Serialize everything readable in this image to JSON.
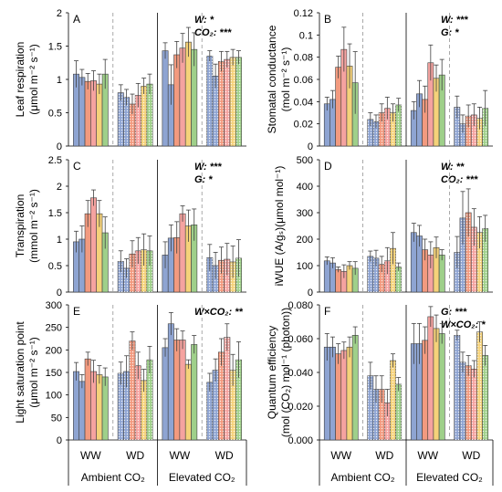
{
  "colors": {
    "bar_colors": [
      "#8ea4d2",
      "#8ea4d2",
      "#f29a7f",
      "#f5a3a0",
      "#f5d27a",
      "#9fd08a"
    ],
    "axis": "#000000",
    "separator": "#a0a0a0"
  },
  "hatched_groups": [
    "WD"
  ],
  "group_labels": [
    "WW",
    "WD",
    "WW",
    "WD"
  ],
  "condition_labels": [
    "Ambient CO₂",
    "Elevated CO₂"
  ],
  "chart_data": [
    {
      "type": "bar",
      "panel": "A",
      "ylabel_line1": "Leaf respiration",
      "ylabel_line2": "(μmol m⁻² s⁻¹)",
      "ylim": [
        0,
        2
      ],
      "yticks": [
        0,
        0.5,
        1,
        1.5,
        2
      ],
      "tick_labels": [
        "0",
        "0.5",
        "1",
        "1.5",
        "2"
      ],
      "stats": [
        "W: *",
        "CO₂: ***"
      ],
      "groups": [
        {
          "values": [
            1.08,
            1.03,
            0.97,
            0.98,
            0.93,
            1.08
          ],
          "errors": [
            0.2,
            0.12,
            0.12,
            0.15,
            0.15,
            0.22
          ]
        },
        {
          "values": [
            0.8,
            0.73,
            0.63,
            0.76,
            0.9,
            0.93
          ],
          "errors": [
            0.12,
            0.12,
            0.15,
            0.18,
            0.12,
            0.15
          ]
        },
        {
          "values": [
            1.43,
            0.92,
            1.37,
            1.47,
            1.56,
            1.45
          ],
          "errors": [
            0.12,
            0.3,
            0.2,
            0.22,
            0.22,
            0.25
          ]
        },
        {
          "values": [
            1.35,
            1.05,
            1.27,
            1.3,
            1.33,
            1.33
          ],
          "errors": [
            0.08,
            0.18,
            0.15,
            0.12,
            0.12,
            0.1
          ]
        }
      ]
    },
    {
      "type": "bar",
      "panel": "B",
      "ylabel_line1": "Stomatal conductance",
      "ylabel_line2": "(mol m⁻² s⁻¹)",
      "ylim": [
        0,
        0.12
      ],
      "yticks": [
        0,
        0.02,
        0.04,
        0.06,
        0.08,
        0.1,
        0.12
      ],
      "tick_labels": [
        "0",
        "0.02",
        "0.04",
        "0.06",
        "0.08",
        "0.1",
        "0.12"
      ],
      "stats": [
        "W: ***",
        "G: *"
      ],
      "groups": [
        {
          "values": [
            0.038,
            0.042,
            0.071,
            0.087,
            0.072,
            0.057
          ],
          "errors": [
            0.006,
            0.008,
            0.01,
            0.02,
            0.02,
            0.028
          ]
        },
        {
          "values": [
            0.024,
            0.022,
            0.03,
            0.034,
            0.03,
            0.037
          ],
          "errors": [
            0.006,
            0.006,
            0.008,
            0.01,
            0.008,
            0.006
          ]
        },
        {
          "values": [
            0.032,
            0.047,
            0.042,
            0.075,
            0.061,
            0.064
          ],
          "errors": [
            0.008,
            0.012,
            0.012,
            0.016,
            0.012,
            0.014
          ]
        },
        {
          "values": [
            0.035,
            0.02,
            0.027,
            0.028,
            0.025,
            0.034
          ],
          "errors": [
            0.01,
            0.008,
            0.01,
            0.01,
            0.01,
            0.016
          ]
        }
      ]
    },
    {
      "type": "bar",
      "panel": "C",
      "ylabel_line1": "Transpiration",
      "ylabel_line2": "(mmol m⁻² s⁻¹)",
      "ylim": [
        0,
        2.5
      ],
      "yticks": [
        0,
        0.5,
        1,
        1.5,
        2,
        2.5
      ],
      "tick_labels": [
        "0",
        "0.5",
        "1",
        "1.5",
        "2",
        "2.5"
      ],
      "stats": [
        "W: ***",
        "G: *"
      ],
      "groups": [
        {
          "values": [
            0.95,
            1.0,
            1.48,
            1.78,
            1.48,
            1.12
          ],
          "errors": [
            0.2,
            0.25,
            0.25,
            0.15,
            0.25,
            0.3
          ]
        },
        {
          "values": [
            0.58,
            0.45,
            0.72,
            0.78,
            0.8,
            0.78
          ],
          "errors": [
            0.2,
            0.18,
            0.25,
            0.25,
            0.3,
            0.28
          ]
        },
        {
          "values": [
            0.7,
            1.02,
            1.03,
            1.48,
            1.25,
            1.27
          ],
          "errors": [
            0.25,
            0.25,
            0.3,
            0.15,
            0.3,
            0.3
          ]
        },
        {
          "values": [
            0.65,
            0.5,
            0.6,
            0.62,
            0.57,
            0.64
          ],
          "errors": [
            0.25,
            0.25,
            0.25,
            0.3,
            0.3,
            0.35
          ]
        }
      ]
    },
    {
      "type": "bar",
      "panel": "D",
      "ylabel_line1": "iWUE (A/gₛ)(μmol mol⁻¹)",
      "ylabel_line2": "",
      "ylim": [
        0,
        500
      ],
      "yticks": [
        0,
        100,
        200,
        300,
        400,
        500
      ],
      "tick_labels": [
        "0",
        "100",
        "200",
        "300",
        "400",
        "500"
      ],
      "stats": [
        "W: **",
        "CO₂: ***"
      ],
      "groups": [
        {
          "values": [
            118,
            110,
            85,
            78,
            100,
            90
          ],
          "errors": [
            15,
            20,
            10,
            25,
            15,
            25
          ]
        },
        {
          "values": [
            135,
            128,
            105,
            118,
            165,
            95
          ],
          "errors": [
            20,
            30,
            30,
            50,
            60,
            15
          ]
        },
        {
          "values": [
            225,
            212,
            160,
            140,
            168,
            140
          ],
          "errors": [
            35,
            40,
            40,
            50,
            40,
            20
          ]
        },
        {
          "values": [
            150,
            280,
            300,
            245,
            225,
            240
          ],
          "errors": [
            60,
            100,
            90,
            70,
            60,
            50
          ]
        }
      ]
    },
    {
      "type": "bar",
      "panel": "E",
      "ylabel_line1": "Light saturation point",
      "ylabel_line2": "(μmol m⁻² s⁻¹)",
      "ylim": [
        0,
        300
      ],
      "yticks": [
        0,
        50,
        100,
        150,
        200,
        250,
        300
      ],
      "tick_labels": [
        "0",
        "50",
        "100",
        "150",
        "200",
        "250",
        "300"
      ],
      "stats": [
        "W×CO₂: **"
      ],
      "groups": [
        {
          "values": [
            152,
            130,
            180,
            152,
            145,
            140
          ],
          "errors": [
            20,
            15,
            15,
            25,
            20,
            20
          ]
        },
        {
          "values": [
            148,
            152,
            220,
            165,
            132,
            178
          ],
          "errors": [
            25,
            35,
            20,
            30,
            25,
            30
          ]
        },
        {
          "values": [
            205,
            258,
            222,
            222,
            168,
            212
          ],
          "errors": [
            20,
            25,
            25,
            20,
            10,
            20
          ]
        },
        {
          "values": [
            128,
            155,
            195,
            228,
            155,
            178
          ],
          "errors": [
            20,
            25,
            30,
            30,
            35,
            40
          ]
        }
      ]
    },
    {
      "type": "bar",
      "panel": "F",
      "ylabel_line1": "Quantum efficiency",
      "ylabel_line2": "(mol (CO₂) mol⁻¹ (photon))",
      "ylim": [
        0,
        0.08
      ],
      "yticks": [
        0,
        0.02,
        0.04,
        0.06,
        0.08
      ],
      "tick_labels": [
        "0.000",
        "0.020",
        "0.040",
        "0.060",
        "0.080"
      ],
      "stats": [
        "G: ***",
        "W×CO₂: *"
      ],
      "groups": [
        {
          "values": [
            0.055,
            0.055,
            0.051,
            0.053,
            0.055,
            0.062
          ],
          "errors": [
            0.008,
            0.006,
            0.006,
            0.005,
            0.006,
            0.005
          ]
        },
        {
          "values": [
            0.038,
            0.03,
            0.03,
            0.022,
            0.047,
            0.033
          ],
          "errors": [
            0.008,
            0.008,
            0.008,
            0.008,
            0.004,
            0.004
          ]
        },
        {
          "values": [
            0.057,
            0.057,
            0.059,
            0.073,
            0.066,
            0.063
          ],
          "errors": [
            0.012,
            0.012,
            0.008,
            0.006,
            0.008,
            0.006
          ]
        },
        {
          "values": [
            0.062,
            0.046,
            0.044,
            0.042,
            0.064,
            0.05
          ],
          "errors": [
            0.003,
            0.006,
            0.006,
            0.005,
            0.006,
            0.006
          ]
        }
      ]
    }
  ]
}
